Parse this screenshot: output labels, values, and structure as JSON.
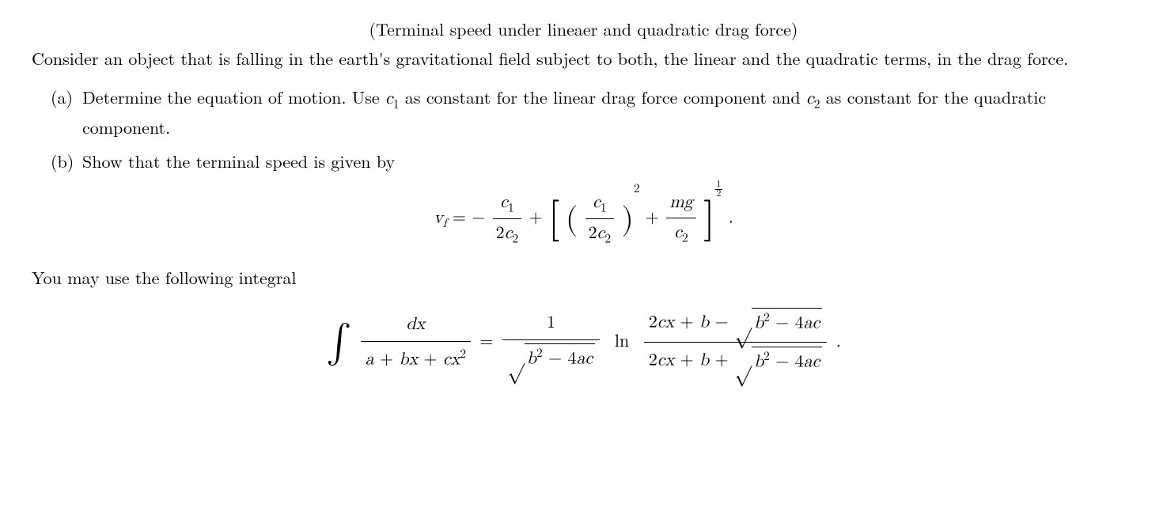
{
  "title": "(Terminal speed under lineaer and quadratic drag force)",
  "intro": "Consider an object that is falling in the earth's gravitational field subject to both, the linear and the quadratic terms, in the drag force.",
  "items": {
    "a": {
      "label": "(a)",
      "text_before": "Determine the equation of motion. Use ",
      "c1": "c",
      "c1_sub": "1",
      "text_mid1": " as constant for the linear drag force component and ",
      "c2": "c",
      "c2_sub": "2",
      "text_after": " as constant for the quadratic component."
    },
    "b": {
      "label": "(b)",
      "text": "Show that the terminal speed is given by"
    }
  },
  "formula_vf": {
    "vf_v": "v",
    "vf_f": "f",
    "eq": " = ",
    "minus": "−",
    "plus": " + ",
    "c1": "c",
    "sub1": "1",
    "two_c2": "2c",
    "sub2": "2",
    "mg": "mg",
    "c2": "c",
    "exp2": "2",
    "half_num": "1",
    "half_den": "2",
    "period": "."
  },
  "hint": "You may use the following integral",
  "formula_int": {
    "dx": "dx",
    "a": "a",
    "b": "b",
    "c": "c",
    "x": "x",
    "bx": "bx",
    "cx2": "cx",
    "sup2": "2",
    "eq": " = ",
    "one": "1",
    "sqrt_content": "b",
    "minus": " − ",
    "four_ac": "4ac",
    "ln": "ln",
    "two_cx": "2cx",
    "plus": " + ",
    "plus_b": "b",
    "period": "."
  },
  "style": {
    "font_size_body": 22,
    "font_size_formula": 22,
    "text_color": "#000000",
    "bg_color": "#ffffff"
  }
}
